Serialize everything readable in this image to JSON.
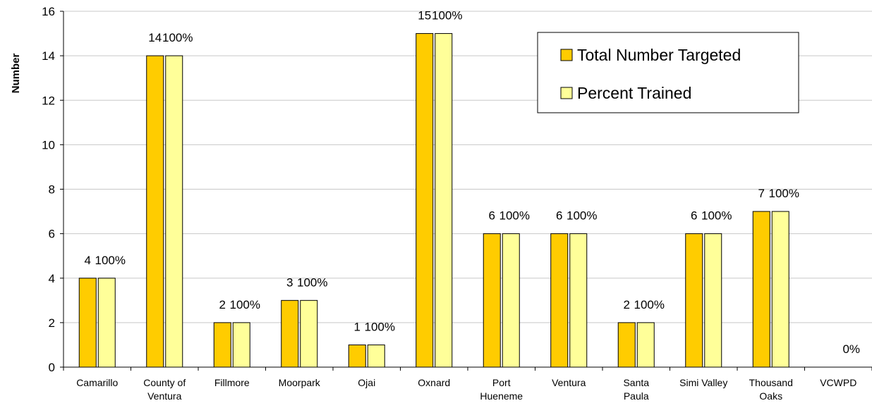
{
  "chart_data": {
    "type": "bar",
    "title": "",
    "xlabel": "",
    "ylabel": "Number",
    "ylim": [
      0,
      16
    ],
    "y_ticks": [
      0,
      2,
      4,
      6,
      8,
      10,
      12,
      14,
      16
    ],
    "grid": "horizontal",
    "legend_position": "top-right",
    "categories": [
      [
        "Camarillo"
      ],
      [
        "County of",
        "Ventura"
      ],
      [
        "Fillmore"
      ],
      [
        "Moorpark"
      ],
      [
        "Ojai"
      ],
      [
        "Oxnard"
      ],
      [
        "Port",
        "Hueneme"
      ],
      [
        "Ventura"
      ],
      [
        "Santa",
        "Paula"
      ],
      [
        "Simi Valley"
      ],
      [
        "Thousand",
        "Oaks"
      ],
      [
        "VCWPD"
      ]
    ],
    "series": [
      {
        "name": "Total Number Targeted",
        "color": "#FFCC00",
        "values": [
          4,
          14,
          2,
          3,
          1,
          15,
          6,
          6,
          2,
          6,
          7,
          0
        ]
      },
      {
        "name": "Percent Trained",
        "color": "#FFFF99",
        "values": [
          4,
          14,
          2,
          3,
          1,
          15,
          6,
          6,
          2,
          6,
          7,
          0
        ]
      }
    ],
    "value_labels": [
      "4",
      "14",
      "2",
      "3",
      "1",
      "15",
      "6",
      "6",
      "2",
      "6",
      "7",
      ""
    ],
    "percent_labels": [
      "100%",
      "100%",
      "100%",
      "100%",
      "100%",
      "100%",
      "100%",
      "100%",
      "100%",
      "100%",
      "100%",
      "0%"
    ]
  }
}
